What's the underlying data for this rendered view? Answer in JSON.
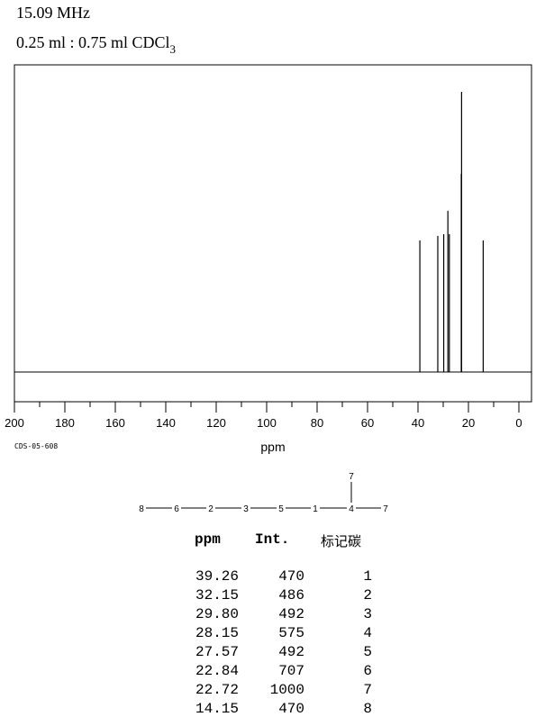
{
  "header": {
    "frequency": "15.09 MHz",
    "solvent_main": "0.25 ml : 0.75 ml CDCl",
    "solvent_sub": "3"
  },
  "code": "CDS-05-608",
  "chart_data": {
    "type": "nmr-spectrum",
    "xlabel": "ppm",
    "xlim": [
      200,
      0
    ],
    "xticks": [
      200,
      180,
      160,
      140,
      120,
      100,
      80,
      60,
      40,
      20,
      0
    ],
    "peaks": [
      {
        "ppm": 39.26,
        "intensity": 470
      },
      {
        "ppm": 32.15,
        "intensity": 486
      },
      {
        "ppm": 29.8,
        "intensity": 492
      },
      {
        "ppm": 28.15,
        "intensity": 575
      },
      {
        "ppm": 27.57,
        "intensity": 492
      },
      {
        "ppm": 22.84,
        "intensity": 707
      },
      {
        "ppm": 22.72,
        "intensity": 1000
      },
      {
        "ppm": 14.15,
        "intensity": 470
      }
    ]
  },
  "structure": {
    "chain": [
      "8",
      "6",
      "2",
      "3",
      "5",
      "1",
      "4",
      "7"
    ],
    "branch": "7"
  },
  "table": {
    "headers": [
      "ppm",
      "Int.",
      "标记碳"
    ],
    "rows": [
      [
        "39.26",
        "470",
        "1"
      ],
      [
        "32.15",
        "486",
        "2"
      ],
      [
        "29.80",
        "492",
        "3"
      ],
      [
        "28.15",
        "575",
        "4"
      ],
      [
        "27.57",
        "492",
        "5"
      ],
      [
        "22.84",
        "707",
        "6"
      ],
      [
        "22.72",
        "1000",
        "7"
      ],
      [
        "14.15",
        "470",
        "8"
      ]
    ]
  }
}
